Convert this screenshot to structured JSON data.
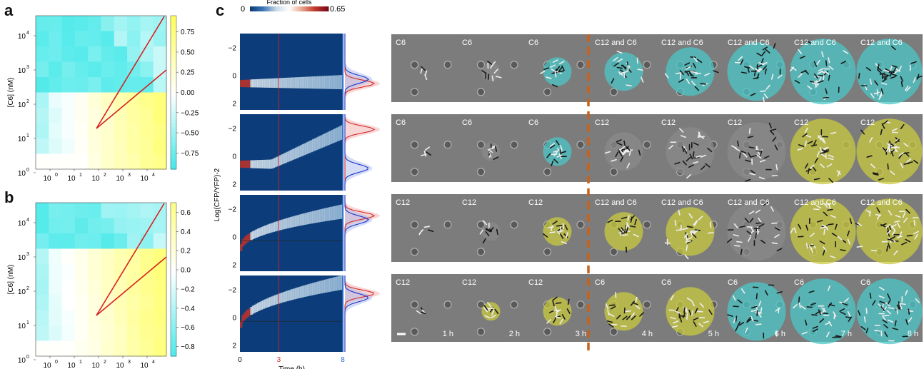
{
  "panels": {
    "a": {
      "letter": "a",
      "xlabel": "[C12] (nM)",
      "ylabel": "[C6] (nM)",
      "colorbar_ticks": [
        "0.75",
        "0.50",
        "0.25",
        "0.00",
        "−0.25",
        "−0.50",
        "−0.75"
      ],
      "colorbar_values": [
        0.75,
        0.5,
        0.25,
        0.0,
        -0.25,
        -0.5,
        -0.75
      ],
      "colorbar_range": [
        -0.95,
        0.95
      ],
      "boundary_at_row": 5
    },
    "b": {
      "letter": "b",
      "xlabel": "[C12] (nM)",
      "ylabel": "[C6] (nM)",
      "colorbar_ticks": [
        "0.6",
        "0.4",
        "0.2",
        "0.0",
        "−0.2",
        "−0.4",
        "−0.6",
        "−0.8"
      ],
      "colorbar_values": [
        0.6,
        0.4,
        0.2,
        0.0,
        -0.2,
        -0.4,
        -0.6,
        -0.8
      ],
      "colorbar_range": [
        -0.9,
        0.7
      ],
      "boundary_at_row": 3
    },
    "x_ticks": [
      "10",
      "10",
      "10",
      "10",
      "10"
    ],
    "x_exps": [
      "0",
      "1",
      "2",
      "3",
      "4"
    ],
    "y_ticks": [
      "10",
      "10",
      "10",
      "10",
      "10"
    ],
    "y_exps": [
      "4",
      "3",
      "2",
      "1",
      "0"
    ],
    "c": {
      "letter": "c",
      "colorbar_title": "Fraction of cells",
      "colorbar_min": "0",
      "colorbar_max": "0.65",
      "ylabel": "Log(CFP/YFP)-2",
      "y_ticks": [
        "−2",
        "0",
        "2"
      ],
      "x_label": "Time (h)",
      "x_ticks": [
        {
          "text": "0",
          "color": "#111111"
        },
        {
          "text": "3",
          "color": "#d42a2a"
        },
        {
          "text": "8",
          "color": "#2a6fd4"
        }
      ],
      "rows": [
        {
          "labels": [
            "C6",
            "C6",
            "C6",
            "C12 and C6",
            "C12 and C6",
            "C12 and C6",
            "C12 and C6",
            "C12 and C6"
          ],
          "tints": [
            "gray",
            "gray",
            "cyan",
            "cyan",
            "cyan",
            "cyan",
            "cyan",
            "cyan"
          ]
        },
        {
          "labels": [
            "C6",
            "C6",
            "C6",
            "C12",
            "C12",
            "C12",
            "C12",
            "C12"
          ],
          "tints": [
            "gray",
            "gray",
            "cyan",
            "gray",
            "gray",
            "gray",
            "yellow",
            "yellow"
          ]
        },
        {
          "labels": [
            "C12",
            "C12",
            "C12",
            "C12 and C6",
            "C12 and C6",
            "C12 and C6",
            "C12 and C6",
            "C12 and C6"
          ],
          "tints": [
            "gray",
            "gray",
            "yellow",
            "yellow",
            "yellow",
            "gray",
            "yellow",
            "yellow"
          ]
        },
        {
          "labels": [
            "C12",
            "C12",
            "C12",
            "C6",
            "C6",
            "C6",
            "C6",
            "C6"
          ],
          "tints": [
            "gray",
            "yellow",
            "yellow",
            "yellow",
            "yellow",
            "cyan",
            "cyan",
            "cyan"
          ]
        }
      ],
      "time_labels": [
        "1 h",
        "2 h",
        "3 h",
        "4 h",
        "5 h",
        "6 h",
        "7 h",
        "8 h"
      ]
    }
  },
  "colors": {
    "heat_low": "#33e6e6",
    "heat_mid": "#ffffff",
    "heat_high": "#ffff55",
    "line_red": "#d62020",
    "dash_orange": "#c8621a",
    "density_blue": "#0c3d7a",
    "tint_cyan": "#4cc7c7",
    "tint_yellow": "#c9c940"
  }
}
